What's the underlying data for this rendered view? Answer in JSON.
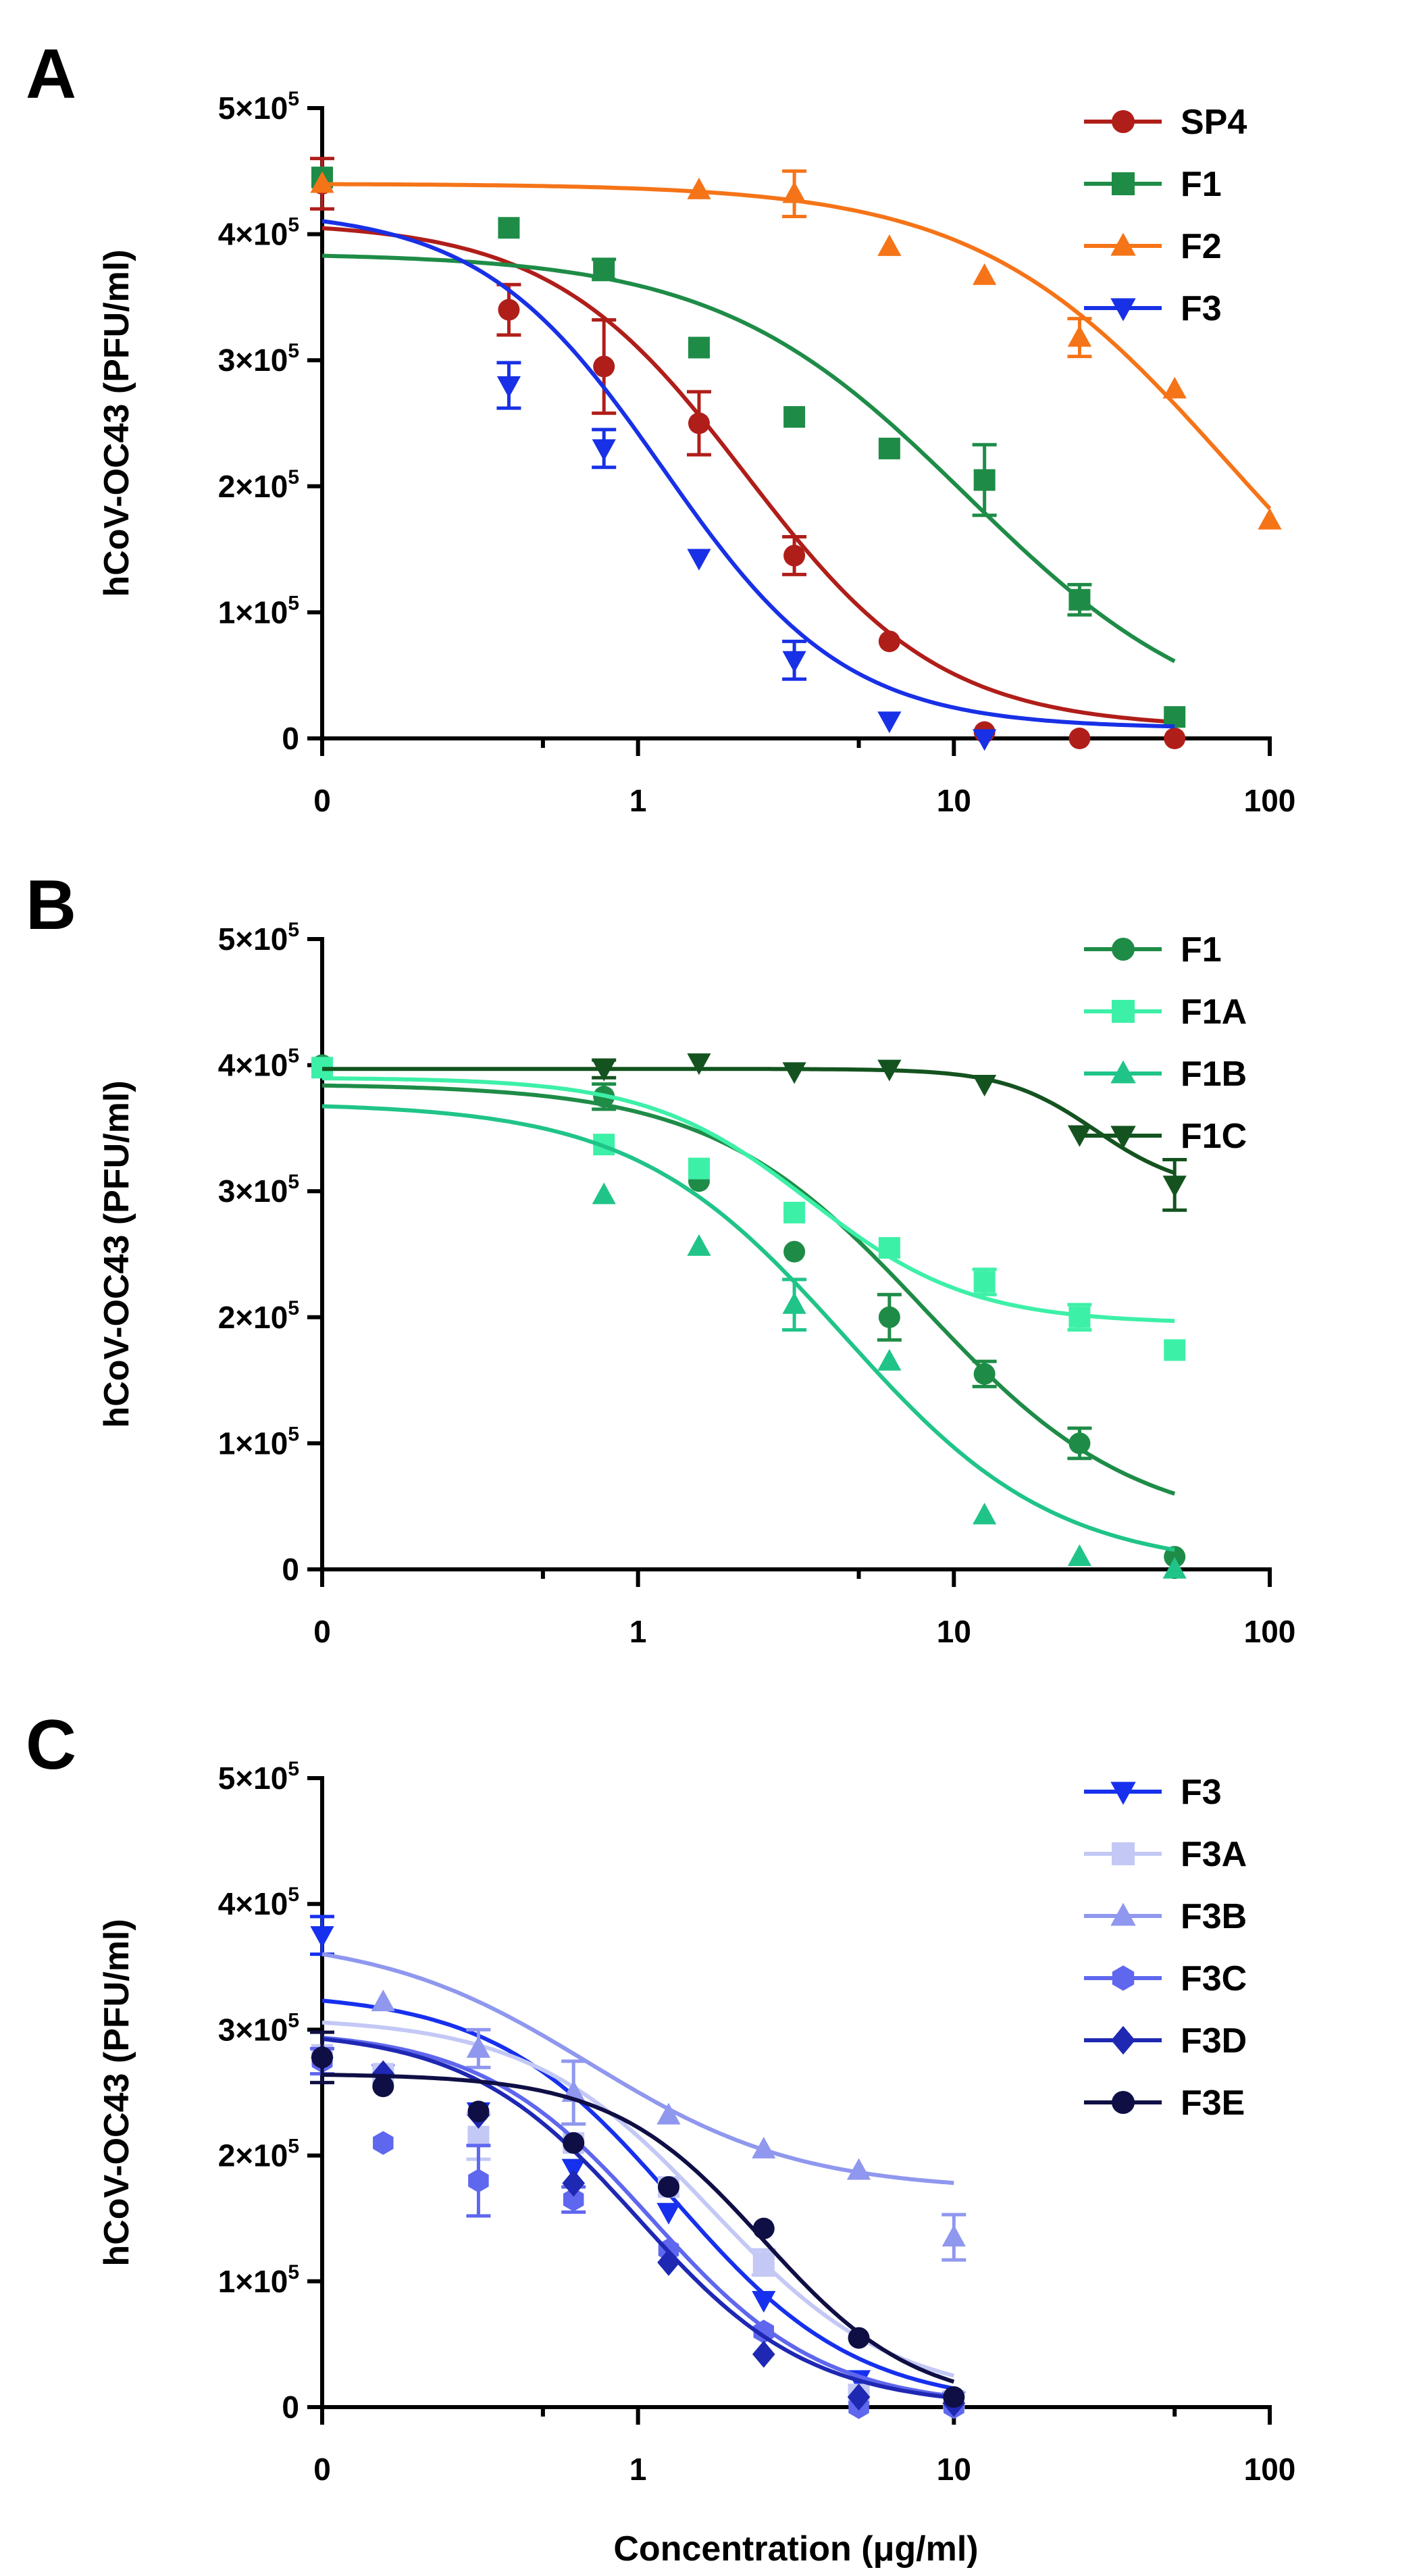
{
  "figure": {
    "x_axis_title": "Concentration (μg/ml)",
    "x_tick_labels": [
      "0",
      "1",
      "10",
      "100"
    ]
  },
  "chart_data": [
    {
      "panel": "A",
      "type": "scatter",
      "ylabel": "hCoV-OC43 (PFU/ml)",
      "xlabel": "Concentration (μg/ml)",
      "xscale": "log (first tick labelled 0)",
      "xlim": [
        0.1,
        100
      ],
      "ylim": [
        0,
        500000
      ],
      "y_ticks": [
        {
          "v": 0,
          "m": "0"
        },
        {
          "v": 100000,
          "m": "1×10",
          "e": "5"
        },
        {
          "v": 200000,
          "m": "2×10",
          "e": "5"
        },
        {
          "v": 300000,
          "m": "3×10",
          "e": "5"
        },
        {
          "v": 400000,
          "m": "4×10",
          "e": "5"
        },
        {
          "v": 500000,
          "m": "5×10",
          "e": "5"
        }
      ],
      "legend_position": "top-right",
      "series": [
        {
          "name": "SP4",
          "color": "#b01e1a",
          "marker": "circle",
          "x": [
            0.1,
            0.39,
            0.78,
            1.56,
            3.125,
            6.25,
            12.5,
            25,
            50
          ],
          "y": [
            440000,
            340000,
            295000,
            250000,
            145000,
            77000,
            5000,
            0,
            0
          ],
          "err": [
            20000,
            20000,
            37000,
            25000,
            15000,
            0,
            0,
            0,
            0
          ],
          "fit": {
            "bottom": 8000,
            "top": 410000,
            "ec50": 2.2,
            "hill": 1.4,
            "xmax": 50
          }
        },
        {
          "name": "F1",
          "color": "#1e8c47",
          "marker": "square",
          "x": [
            0.1,
            0.39,
            0.78,
            1.56,
            3.125,
            6.25,
            12.5,
            25,
            50
          ],
          "y": [
            445000,
            405000,
            372000,
            310000,
            255000,
            230000,
            205000,
            110000,
            17000
          ],
          "err": [
            0,
            0,
            8000,
            0,
            0,
            0,
            28000,
            12000,
            0
          ],
          "fit": {
            "bottom": 0,
            "top": 385000,
            "ec50": 11,
            "hill": 1.1,
            "xmax": 50
          }
        },
        {
          "name": "F2",
          "color": "#f57418",
          "marker": "triangle",
          "x": [
            0.1,
            1.56,
            3.125,
            6.25,
            12.5,
            25,
            50,
            100
          ],
          "y": [
            440000,
            435000,
            432000,
            390000,
            367000,
            318000,
            277000,
            173000
          ],
          "err": [
            0,
            0,
            18000,
            0,
            0,
            15000,
            0,
            0
          ],
          "fit": {
            "bottom": 0,
            "top": 440000,
            "ec50": 73,
            "hill": 1.1,
            "xmax": 100
          }
        },
        {
          "name": "F3",
          "color": "#1830e6",
          "marker": "triangle-down",
          "x": [
            0.39,
            0.78,
            1.56,
            3.125,
            6.25,
            12.5
          ],
          "y": [
            280000,
            230000,
            143000,
            62000,
            14000,
            0
          ],
          "err": [
            18000,
            15000,
            0,
            15000,
            0,
            0
          ],
          "fit": {
            "bottom": 8000,
            "top": 420000,
            "ec50": 1.2,
            "hill": 1.5,
            "xmax": 50
          }
        }
      ]
    },
    {
      "panel": "B",
      "type": "scatter",
      "ylabel": "hCoV-OC43 (PFU/ml)",
      "xlabel": "Concentration (μg/ml)",
      "xscale": "log (first tick labelled 0)",
      "xlim": [
        0.1,
        100
      ],
      "ylim": [
        0,
        500000
      ],
      "y_ticks": [
        {
          "v": 0,
          "m": "0"
        },
        {
          "v": 100000,
          "m": "1×10",
          "e": "5"
        },
        {
          "v": 200000,
          "m": "2×10",
          "e": "5"
        },
        {
          "v": 300000,
          "m": "3×10",
          "e": "5"
        },
        {
          "v": 400000,
          "m": "4×10",
          "e": "5"
        },
        {
          "v": 500000,
          "m": "5×10",
          "e": "5"
        }
      ],
      "legend_position": "top-right",
      "series": [
        {
          "name": "F1",
          "color": "#1e8c47",
          "marker": "circle",
          "x": [
            0.1,
            0.78,
            1.56,
            3.125,
            6.25,
            12.5,
            25,
            50
          ],
          "y": [
            400000,
            375000,
            308000,
            252000,
            200000,
            155000,
            100000,
            10000
          ],
          "err": [
            0,
            10000,
            0,
            0,
            18000,
            10000,
            12000,
            0
          ],
          "fit": {
            "bottom": 30000,
            "top": 385000,
            "ec50": 8.0,
            "hill": 1.3,
            "xmax": 50
          }
        },
        {
          "name": "F1A",
          "color": "#3df0a8",
          "marker": "square",
          "x": [
            0.1,
            0.78,
            1.56,
            3.125,
            6.25,
            12.5,
            25,
            50
          ],
          "y": [
            398000,
            337000,
            318000,
            283000,
            255000,
            228000,
            200000,
            174000
          ],
          "err": [
            0,
            0,
            0,
            0,
            0,
            10000,
            10000,
            0
          ],
          "fit": {
            "bottom": 195000,
            "top": 390000,
            "ec50": 3.5,
            "hill": 1.7,
            "xmax": 50
          }
        },
        {
          "name": "F1B",
          "color": "#20c488",
          "marker": "triangle",
          "x": [
            0.78,
            1.56,
            3.125,
            6.25,
            12.5,
            25,
            50
          ],
          "y": [
            297000,
            256000,
            210000,
            165000,
            43000,
            10000,
            0
          ],
          "err": [
            0,
            0,
            20000,
            0,
            0,
            0,
            0
          ],
          "fit": {
            "bottom": 0,
            "top": 370000,
            "ec50": 4.5,
            "hill": 1.3,
            "xmax": 50
          }
        },
        {
          "name": "F1C",
          "color": "#14531f",
          "marker": "triangle-down",
          "x": [
            0.78,
            1.56,
            3.125,
            6.25,
            12.5,
            25,
            50
          ],
          "y": [
            397000,
            402000,
            395000,
            397000,
            385000,
            345000,
            305000
          ],
          "err": [
            7000,
            0,
            0,
            0,
            0,
            0,
            20000
          ],
          "fit": {
            "bottom": 300000,
            "top": 397000,
            "ec50": 28,
            "hill": 3.0,
            "xmax": 50
          }
        }
      ]
    },
    {
      "panel": "C",
      "type": "scatter",
      "ylabel": "hCoV-OC43 (PFU/ml)",
      "xlabel": "Concentration (μg/ml)",
      "xscale": "log (first tick labelled 0)",
      "xlim": [
        0.1,
        100
      ],
      "ylim": [
        0,
        500000
      ],
      "y_ticks": [
        {
          "v": 0,
          "m": "0"
        },
        {
          "v": 100000,
          "m": "1×10",
          "e": "5"
        },
        {
          "v": 200000,
          "m": "2×10",
          "e": "5"
        },
        {
          "v": 300000,
          "m": "3×10",
          "e": "5"
        },
        {
          "v": 400000,
          "m": "4×10",
          "e": "5"
        },
        {
          "v": 500000,
          "m": "5×10",
          "e": "5"
        }
      ],
      "legend_position": "top-right",
      "series": [
        {
          "name": "F3",
          "color": "#1630ee",
          "marker": "triangle-down",
          "x": [
            0.1,
            0.156,
            0.3125,
            0.625,
            1.25,
            2.5,
            5,
            10
          ],
          "y": [
            375000,
            265000,
            235000,
            190000,
            155000,
            85000,
            22000,
            5000
          ],
          "err": [
            15000,
            0,
            0,
            0,
            0,
            0,
            0,
            0
          ],
          "fit": {
            "bottom": 0,
            "top": 330000,
            "ec50": 1.3,
            "hill": 1.5,
            "xmax": 10
          }
        },
        {
          "name": "F3A",
          "color": "#c3c8f5",
          "marker": "square",
          "x": [
            0.1,
            0.156,
            0.3125,
            0.625,
            1.25,
            2.5,
            5,
            10
          ],
          "y": [
            280000,
            265000,
            215000,
            210000,
            175000,
            115000,
            10000,
            5000
          ],
          "err": [
            0,
            0,
            18000,
            0,
            0,
            10000,
            0,
            0
          ],
          "fit": {
            "bottom": 5000,
            "top": 310000,
            "ec50": 1.7,
            "hill": 1.5,
            "xmax": 10
          }
        },
        {
          "name": "F3B",
          "color": "#8f97ee",
          "marker": "triangle",
          "x": [
            0.156,
            0.3125,
            0.625,
            1.25,
            2.5,
            5,
            10
          ],
          "y": [
            322000,
            285000,
            250000,
            232000,
            205000,
            188000,
            135000
          ],
          "err": [
            0,
            15000,
            25000,
            0,
            0,
            0,
            18000
          ],
          "fit": {
            "bottom": 172000,
            "top": 375000,
            "ec50": 0.7,
            "hill": 1.3,
            "xmax": 10
          }
        },
        {
          "name": "F3C",
          "color": "#5f67ee",
          "marker": "hexagon",
          "x": [
            0.1,
            0.156,
            0.3125,
            0.625,
            1.25,
            2.5,
            5,
            10
          ],
          "y": [
            275000,
            210000,
            180000,
            165000,
            125000,
            60000,
            0,
            0
          ],
          "err": [
            10000,
            0,
            28000,
            10000,
            0,
            0,
            0,
            0
          ],
          "fit": {
            "bottom": 0,
            "top": 300000,
            "ec50": 1.1,
            "hill": 1.6,
            "xmax": 10
          }
        },
        {
          "name": "F3D",
          "color": "#1f28b2",
          "marker": "diamond",
          "x": [
            0.1,
            0.156,
            0.3125,
            0.625,
            1.25,
            2.5,
            5,
            10
          ],
          "y": [
            278000,
            265000,
            232000,
            178000,
            115000,
            42000,
            8000,
            3000
          ],
          "err": [
            0,
            0,
            0,
            0,
            0,
            0,
            0,
            0
          ],
          "fit": {
            "bottom": 0,
            "top": 300000,
            "ec50": 1.0,
            "hill": 1.6,
            "xmax": 10
          }
        },
        {
          "name": "F3E",
          "color": "#0f0f45",
          "marker": "circle",
          "x": [
            0.1,
            0.156,
            0.3125,
            0.625,
            1.25,
            2.5,
            5,
            10
          ],
          "y": [
            278000,
            255000,
            235000,
            210000,
            175000,
            142000,
            55000,
            8000
          ],
          "err": [
            20000,
            0,
            0,
            0,
            0,
            0,
            0,
            0
          ],
          "fit": {
            "bottom": 0,
            "top": 265000,
            "ec50": 2.5,
            "hill": 1.8,
            "xmax": 10
          }
        }
      ]
    }
  ]
}
